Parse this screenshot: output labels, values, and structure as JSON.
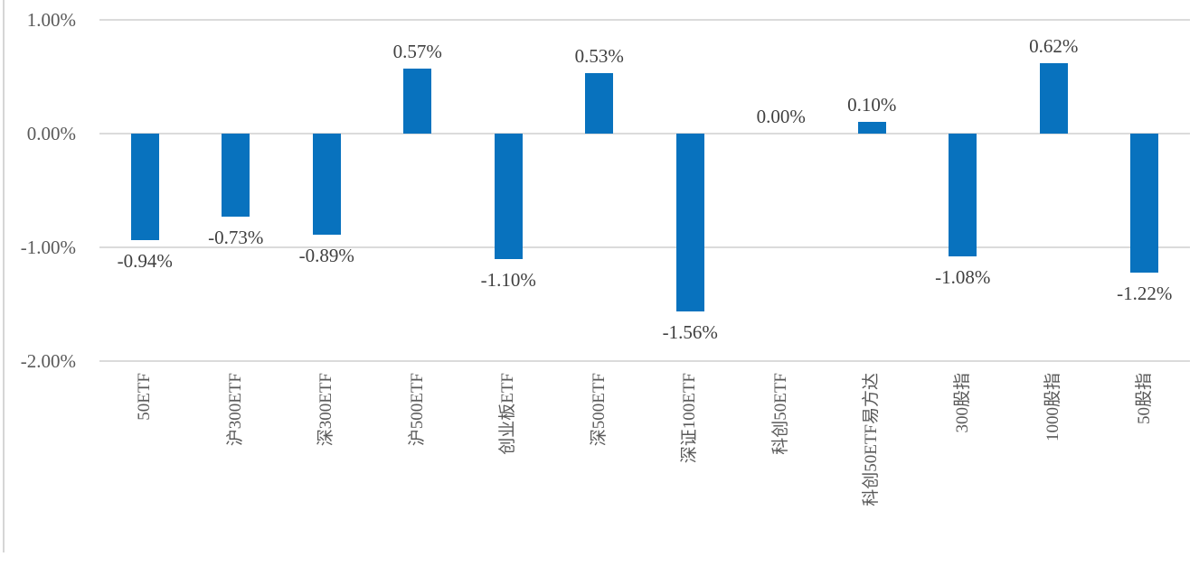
{
  "chart_data": {
    "type": "bar",
    "title": "",
    "xlabel": "",
    "ylabel": "",
    "categories": [
      "50ETF",
      "沪300ETF",
      "深300ETF",
      "沪500ETF",
      "创业板ETF",
      "深500ETF",
      "深证100ETF",
      "科创50ETF",
      "科创50ETF易方达",
      "300股指",
      "1000股指",
      "50股指"
    ],
    "values": [
      -0.94,
      -0.73,
      -0.89,
      0.57,
      -1.1,
      0.53,
      -1.56,
      0.0,
      0.1,
      -1.08,
      0.62,
      -1.22
    ],
    "data_labels": [
      "-0.94%",
      "-0.73%",
      "-0.89%",
      "0.57%",
      "-1.10%",
      "0.53%",
      "-1.56%",
      "0.00%",
      "0.10%",
      "-1.08%",
      "0.62%",
      "-1.22%"
    ],
    "y_ticks": [
      {
        "label": "1.00%",
        "value": 1.0
      },
      {
        "label": "0.00%",
        "value": 0.0
      },
      {
        "label": "-1.00%",
        "value": -1.0
      },
      {
        "label": "-2.00%",
        "value": -2.0
      }
    ],
    "ylim": [
      -2.0,
      1.0
    ],
    "grid": true,
    "legend_position": "none",
    "colors": {
      "bar": "#0872BE",
      "gridline": "#dbdbdb",
      "axis_text": "#595959",
      "data_label_text": "#404040"
    }
  }
}
